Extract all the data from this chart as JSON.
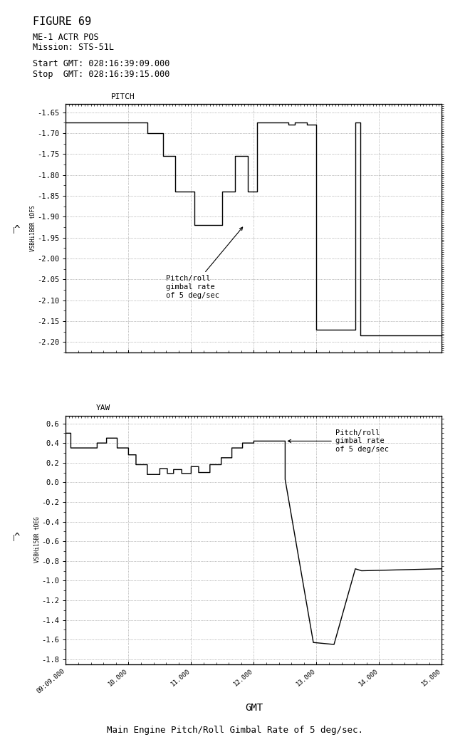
{
  "title": "FIGURE 69",
  "subtitle1": "ME-1 ACTR POS",
  "subtitle2": "Mission: STS-51L",
  "start_gmt": "Start GMT: 028:16:39:09.000",
  "stop_gmt": "Stop  GMT: 028:16:39:15.000",
  "xlabel": "GMT",
  "bottom_label": "Main Engine Pitch/Roll Gimbal Rate of 5 deg/sec.",
  "pitch_label": "PITCH",
  "yaw_label": "YAW",
  "pitch_ylabel": "VSBHi1BBR tDFS",
  "yaw_ylabel": "VSBHi15BR tDEG",
  "pitch_ylim": [
    -2.225,
    -1.63
  ],
  "yaw_ylim": [
    -1.85,
    0.68
  ],
  "xlim": [
    9.0,
    15.0
  ],
  "pitch_yticks": [
    -2.2,
    -2.15,
    -2.1,
    -2.05,
    -2.0,
    -1.95,
    -1.9,
    -1.85,
    -1.8,
    -1.75,
    -1.7,
    -1.65
  ],
  "yaw_yticks": [
    -1.8,
    -1.6,
    -1.4,
    -1.2,
    -1.0,
    -0.8,
    -0.6,
    -0.4,
    -0.2,
    0.0,
    0.2,
    0.4,
    0.6
  ],
  "xticks": [
    9.0,
    10.0,
    11.0,
    12.0,
    13.0,
    14.0,
    15.0
  ],
  "xtick_labels": [
    "09:09.000",
    "10.000",
    "11.000",
    "12.000",
    "13.000",
    "14.000",
    "15.000"
  ],
  "pitch_annotation": "Pitch/roll\ngimbal rate\nof 5 deg/sec",
  "yaw_annotation": "Pitch/roll\ngimbal rate\nof 5 deg/sec",
  "pitch_x": [
    9.0,
    10.3,
    10.3,
    10.55,
    10.55,
    10.75,
    10.75,
    11.05,
    11.05,
    11.5,
    11.5,
    11.7,
    11.7,
    11.9,
    11.9,
    12.05,
    12.05,
    12.55,
    12.55,
    12.65,
    12.65,
    12.85,
    12.85,
    13.0,
    13.0,
    13.62,
    13.62,
    13.7,
    13.7,
    15.0
  ],
  "pitch_y": [
    -1.675,
    -1.675,
    -1.7,
    -1.7,
    -1.755,
    -1.755,
    -1.84,
    -1.84,
    -1.92,
    -1.92,
    -1.84,
    -1.84,
    -1.755,
    -1.755,
    -1.84,
    -1.84,
    -1.675,
    -1.675,
    -1.68,
    -1.68,
    -1.675,
    -1.675,
    -1.68,
    -1.68,
    -2.17,
    -2.17,
    -1.675,
    -1.675,
    -2.185,
    -2.185
  ],
  "yaw_x": [
    9.0,
    9.08,
    9.08,
    9.5,
    9.5,
    9.65,
    9.65,
    9.82,
    9.82,
    10.0,
    10.0,
    10.12,
    10.12,
    10.3,
    10.3,
    10.5,
    10.5,
    10.62,
    10.62,
    10.72,
    10.72,
    10.85,
    10.85,
    11.0,
    11.0,
    11.12,
    11.12,
    11.3,
    11.3,
    11.48,
    11.48,
    11.65,
    11.65,
    11.82,
    11.82,
    12.0,
    12.0,
    12.42,
    12.42,
    12.5,
    12.5,
    12.95,
    12.95,
    13.28,
    13.28,
    13.62,
    13.62,
    13.72,
    13.72,
    15.0
  ],
  "yaw_y": [
    0.5,
    0.5,
    0.35,
    0.35,
    0.4,
    0.4,
    0.45,
    0.45,
    0.35,
    0.35,
    0.28,
    0.28,
    0.18,
    0.18,
    0.08,
    0.08,
    0.14,
    0.14,
    0.09,
    0.09,
    0.13,
    0.13,
    0.09,
    0.09,
    0.16,
    0.16,
    0.1,
    0.1,
    0.18,
    0.18,
    0.25,
    0.25,
    0.35,
    0.35,
    0.4,
    0.4,
    0.42,
    0.42,
    0.42,
    0.42,
    0.03,
    -1.63,
    -1.63,
    -1.65,
    -1.65,
    -0.88,
    -0.88,
    -0.9,
    -0.9,
    -0.88
  ]
}
